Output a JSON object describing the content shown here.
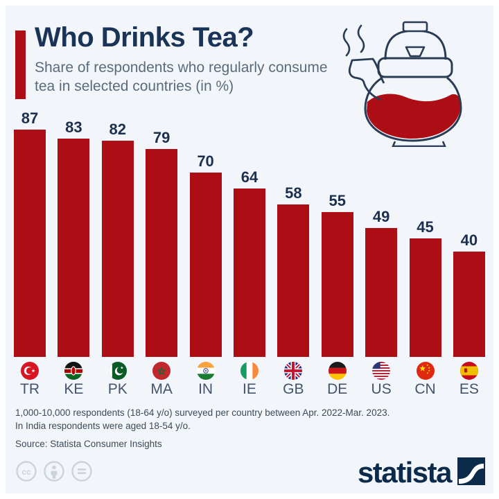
{
  "header": {
    "title": "Who Drinks Tea?",
    "subtitle": "Share of respondents who regularly consume tea in selected countries (in %)",
    "decoration_icon": "teapot-icon"
  },
  "chart_data": {
    "type": "bar",
    "title": "Who Drinks Tea?",
    "description": "Share of respondents who regularly consume tea in selected countries (in %)",
    "categories": [
      "TR",
      "KE",
      "PK",
      "MA",
      "IN",
      "IE",
      "GB",
      "DE",
      "US",
      "CN",
      "ES"
    ],
    "values": [
      87,
      83,
      82,
      79,
      70,
      64,
      58,
      55,
      49,
      45,
      40
    ],
    "unit": "%",
    "ylim": [
      0,
      100
    ],
    "value_labels_shown": true,
    "grid": false,
    "legend": false,
    "bar_color": "#ad0e15",
    "flag_icons": [
      "flag-turkey-icon",
      "flag-kenya-icon",
      "flag-pakistan-icon",
      "flag-morocco-icon",
      "flag-india-icon",
      "flag-ireland-icon",
      "flag-united-kingdom-icon",
      "flag-germany-icon",
      "flag-united-states-icon",
      "flag-china-icon",
      "flag-spain-icon"
    ]
  },
  "footnotes": {
    "line1": "1,000-10,000 respondents (18-64 y/o) surveyed per country between Apr. 2022-Mar. 2023.",
    "line2": "In India respondents were aged 18-54 y/o.",
    "source": "Source: Statista Consumer Insights"
  },
  "footer": {
    "license_icons": [
      "cc-icon",
      "attribution-person-icon",
      "no-derivatives-equals-icon"
    ],
    "brand": "statista",
    "brand_logo_icon": "statista-swoosh-icon"
  },
  "colors": {
    "accent_red": "#ad0e15",
    "title_navy": "#1a3457",
    "subtitle_gray": "#5a6b7c",
    "background": "#f2f5f9",
    "brand_navy": "#0c2a4a"
  }
}
